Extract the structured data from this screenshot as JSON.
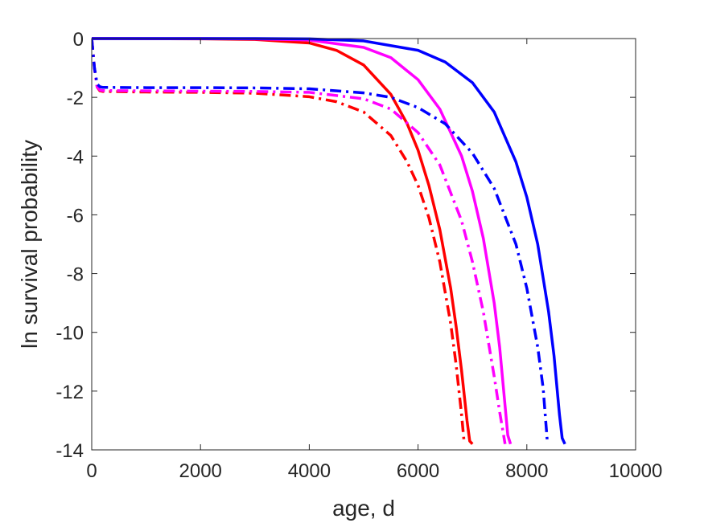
{
  "chart_data": {
    "type": "line",
    "title": "",
    "xlabel": "age, d",
    "ylabel": "ln survival probability",
    "xlim": [
      0,
      10000
    ],
    "ylim": [
      -14,
      0
    ],
    "xticks": [
      0,
      2000,
      4000,
      6000,
      8000,
      10000
    ],
    "xtick_labels": [
      "0",
      "2000",
      "4000",
      "6000",
      "8000",
      "10000"
    ],
    "yticks": [
      0,
      -2,
      -4,
      -6,
      -8,
      -10,
      -12,
      -14
    ],
    "ytick_labels": [
      "0",
      "-2",
      "-4",
      "-6",
      "-8",
      "-10",
      "-12",
      "-14"
    ],
    "grid": false,
    "legend": "none",
    "series": [
      {
        "color": "#ff0000",
        "style": "solid",
        "x": [
          0,
          2000,
          3000,
          4000,
          4500,
          5000,
          5500,
          5800,
          6000,
          6200,
          6400,
          6600,
          6700,
          6800,
          6900,
          6950,
          7000
        ],
        "y": [
          0,
          -0.01,
          -0.03,
          -0.15,
          -0.4,
          -0.9,
          -1.9,
          -2.9,
          -3.8,
          -5.0,
          -6.5,
          -8.5,
          -9.8,
          -11.3,
          -13.0,
          -13.7,
          -13.8
        ]
      },
      {
        "color": "#ff00ff",
        "style": "solid",
        "x": [
          0,
          2000,
          3000,
          4000,
          5000,
          5500,
          6000,
          6400,
          6800,
          7000,
          7200,
          7400,
          7500,
          7600,
          7650,
          7700
        ],
        "y": [
          0,
          0,
          -0.01,
          -0.05,
          -0.3,
          -0.65,
          -1.4,
          -2.4,
          -4.0,
          -5.2,
          -6.8,
          -9.0,
          -10.5,
          -12.5,
          -13.5,
          -13.8
        ]
      },
      {
        "color": "#0000ff",
        "style": "solid",
        "x": [
          0,
          2000,
          3000,
          4000,
          5000,
          6000,
          6500,
          7000,
          7400,
          7800,
          8000,
          8200,
          8400,
          8500,
          8600,
          8650,
          8700
        ],
        "y": [
          0,
          0,
          0,
          -0.01,
          -0.08,
          -0.4,
          -0.8,
          -1.5,
          -2.5,
          -4.2,
          -5.4,
          -7.0,
          -9.3,
          -10.8,
          -12.8,
          -13.6,
          -13.8
        ]
      },
      {
        "color": "#ff0000",
        "style": "dashdot",
        "x": [
          0,
          50,
          100,
          150,
          200,
          1000,
          2000,
          3000,
          4000,
          4500,
          5000,
          5500,
          5800,
          6000,
          6200,
          6400,
          6600,
          6700,
          6800,
          6850
        ],
        "y": [
          0,
          -1.0,
          -1.65,
          -1.78,
          -1.8,
          -1.82,
          -1.83,
          -1.86,
          -1.98,
          -2.15,
          -2.5,
          -3.3,
          -4.2,
          -5.0,
          -6.1,
          -7.6,
          -9.7,
          -11.1,
          -12.8,
          -13.8
        ]
      },
      {
        "color": "#ff00ff",
        "style": "dashdot",
        "x": [
          0,
          50,
          100,
          150,
          200,
          1000,
          2000,
          3000,
          4000,
          5000,
          5500,
          6000,
          6400,
          6800,
          7000,
          7200,
          7400,
          7500,
          7600
        ],
        "y": [
          0,
          -1.0,
          -1.65,
          -1.75,
          -1.77,
          -1.78,
          -1.79,
          -1.8,
          -1.83,
          -2.05,
          -2.4,
          -3.2,
          -4.3,
          -6.2,
          -7.6,
          -9.3,
          -11.5,
          -12.7,
          -13.8
        ]
      },
      {
        "color": "#0000ff",
        "style": "dashdot",
        "x": [
          0,
          50,
          100,
          150,
          200,
          1000,
          2000,
          3000,
          4000,
          5000,
          5500,
          6000,
          6500,
          7000,
          7400,
          7800,
          8000,
          8200,
          8300,
          8380
        ],
        "y": [
          0,
          -1.0,
          -1.55,
          -1.64,
          -1.66,
          -1.67,
          -1.67,
          -1.68,
          -1.71,
          -1.85,
          -2.0,
          -2.35,
          -2.9,
          -3.9,
          -5.1,
          -7.0,
          -8.5,
          -10.5,
          -11.9,
          -13.8
        ]
      }
    ]
  }
}
